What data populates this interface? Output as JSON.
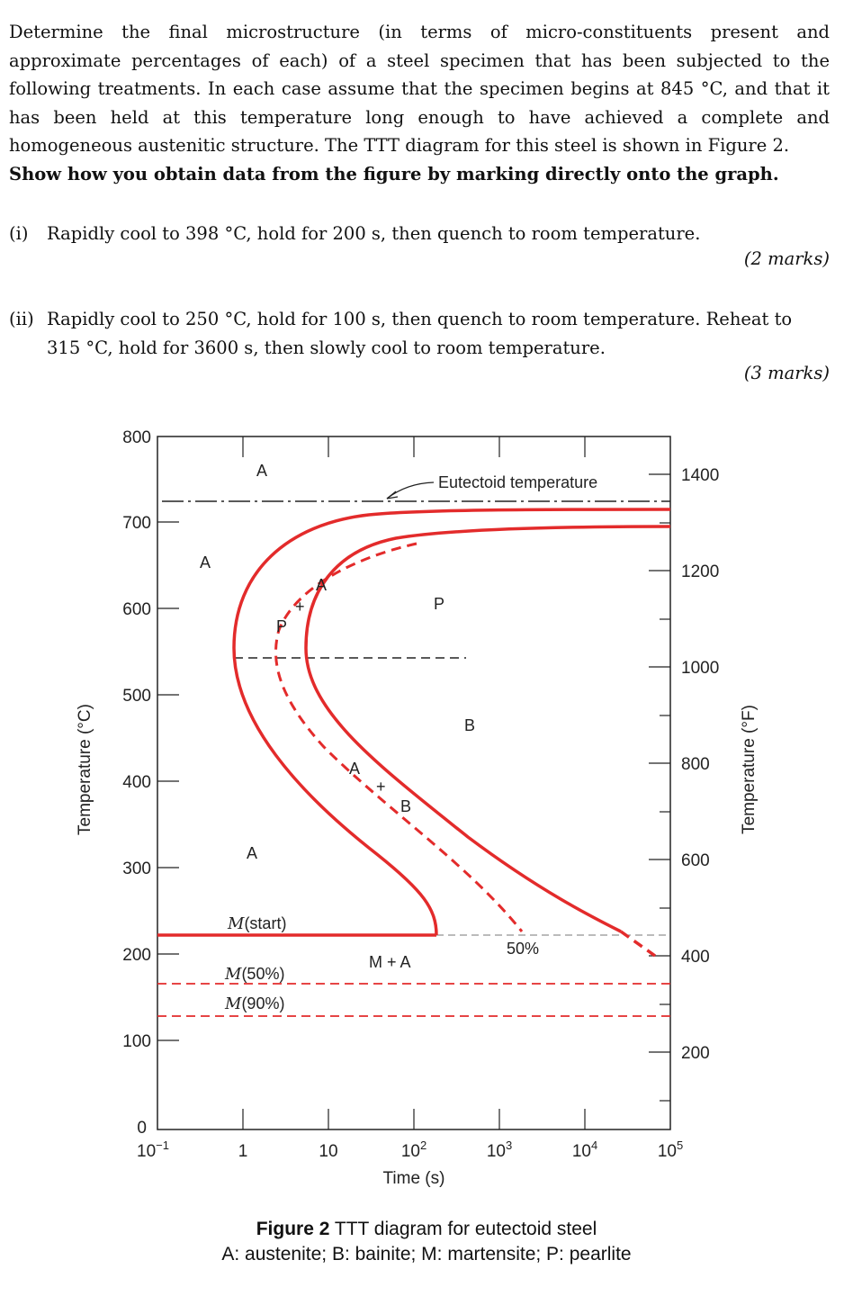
{
  "question": {
    "intro_text": "Determine the final microstructure (in terms of micro-constituents present and approximate percentages of each) of a steel specimen that has been subjected to the following treatments. In each case assume that the specimen begins at 845 °C, and that it has been held at this temperature long enough to have achieved a complete and homogeneous austenitic structure. The TTT diagram for this steel is shown in Figure 2.",
    "instruction": "Show how you obtain data from the figure by marking directly onto the graph.",
    "parts": [
      {
        "label": "(i)",
        "text": "Rapidly cool to 398 °C, hold for 200 s, then quench to room temperature.",
        "marks": "(2 marks)"
      },
      {
        "label": "(ii)",
        "text": "Rapidly cool to 250 °C, hold for 100 s, then quench to room temperature. Reheat to 315 °C, hold for 3600 s, then slowly cool to room temperature.",
        "marks": "(3 marks)"
      }
    ]
  },
  "figure": {
    "y_axis_label": "Temperature (°C)",
    "y2_axis_label": "Temperature (°F)",
    "x_axis_label": "Time (s)",
    "y_ticks": [
      "800",
      "700",
      "600",
      "500",
      "400",
      "300",
      "200",
      "100",
      "0"
    ],
    "y2_ticks": [
      "1400",
      "1200",
      "1000",
      "800",
      "600",
      "400",
      "200"
    ],
    "x_ticks": [
      {
        "base": "10",
        "exp": "−1"
      },
      {
        "base": "1",
        "exp": ""
      },
      {
        "base": "10",
        "exp": ""
      },
      {
        "base": "10",
        "exp": "2"
      },
      {
        "base": "10",
        "exp": "3"
      },
      {
        "base": "10",
        "exp": "4"
      },
      {
        "base": "10",
        "exp": "5"
      }
    ],
    "region_labels": {
      "a_top": "A",
      "a_left": "A",
      "a_between_upper": "A",
      "p_dash": "P",
      "plus_upper": "+",
      "p_region": "P",
      "b_region": "B",
      "a_between_lower": "A",
      "plus_lower": "+",
      "b_dash": "B",
      "a_lower": "A",
      "m_plus_a": "M + A",
      "fifty_percent": "50%"
    },
    "eutectoid_label": "Eutectoid temperature",
    "m_start": {
      "prefix": "M",
      "suffix": "(start)"
    },
    "m_50": {
      "prefix": "M",
      "suffix": "(50%)"
    },
    "m_90": {
      "prefix": "M",
      "suffix": "(90%)"
    },
    "colors": {
      "curve": "#e32b2b",
      "axis": "#222222"
    },
    "caption_bold": "Figure 2",
    "caption_rest": " TTT diagram for eutectoid steel",
    "caption_line2": "A: austenite; B: bainite; M: martensite; P: pearlite"
  },
  "chart_data": {
    "type": "line",
    "xlabel": "Time (s)",
    "ylabel": "Temperature (°C)",
    "x_scale": "log",
    "xlim": [
      0.1,
      100000
    ],
    "ylim": [
      0,
      800
    ],
    "eutectoid_temperature": 727,
    "martensite_lines": {
      "M(start)": 220,
      "M(50%)": 168,
      "M(90%)": 130
    },
    "series": [
      {
        "name": "",
        "x": [
          100000,
          1000,
          100,
          10,
          3,
          1.5,
          1,
          1,
          2,
          8,
          40,
          150,
          200
        ],
        "y": [
          727,
          720,
          705,
          670,
          620,
          580,
          540,
          500,
          420,
          350,
          290,
          240,
          220
        ]
      },
      {
        "name": "50%",
        "x": [
          6,
          3,
          2.2,
          5,
          15,
          50,
          200,
          800,
          1200
        ],
        "y": [
          625,
          600,
          540,
          470,
          410,
          370,
          320,
          260,
          230
        ]
      },
      {
        "name": "",
        "x": [
          100000,
          5000,
          1000,
          100,
          20,
          8,
          5,
          7,
          20,
          100,
          1000,
          10000,
          40000,
          80000
        ],
        "y": [
          712,
          710,
          705,
          690,
          660,
          610,
          540,
          490,
          440,
          390,
          320,
          250,
          220,
          200
        ]
      }
    ]
  }
}
